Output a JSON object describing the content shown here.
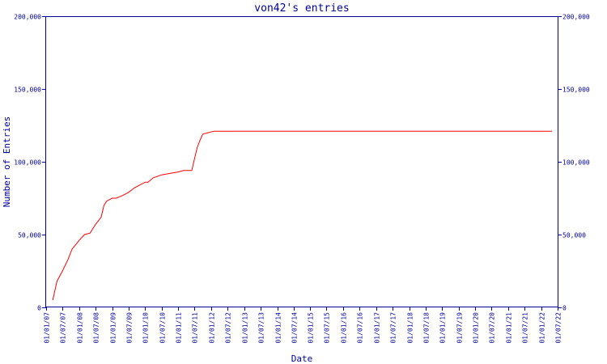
{
  "chart_data": {
    "type": "line",
    "title": "von42's entries",
    "xlabel": "Date",
    "ylabel": "Number of Entries",
    "ylim": [
      0,
      200000
    ],
    "y_ticks": [
      0,
      50000,
      100000,
      150000,
      200000
    ],
    "y_tick_labels": [
      "0",
      "50,000",
      "100,000",
      "150,000",
      "200,000"
    ],
    "x_range": [
      "2007-01-01",
      "2022-07-01"
    ],
    "x_tick_labels": [
      "01/01/07",
      "01/07/07",
      "01/01/08",
      "01/07/08",
      "01/01/09",
      "01/07/09",
      "01/01/10",
      "01/07/10",
      "01/01/11",
      "01/07/11",
      "01/01/12",
      "01/07/12",
      "01/01/13",
      "01/07/13",
      "01/01/14",
      "01/07/14",
      "01/01/15",
      "01/07/15",
      "01/01/16",
      "01/07/16",
      "01/01/17",
      "01/07/17",
      "01/01/18",
      "01/07/18",
      "01/01/19",
      "01/07/19",
      "01/01/20",
      "01/07/20",
      "01/01/21",
      "01/07/21",
      "01/01/22",
      "01/07/22"
    ],
    "line_color": "#ff0000",
    "axis_color": "#000099",
    "grid": false,
    "series": [
      {
        "x": [
          "2007-03-15",
          "2007-05-01",
          "2007-07-01",
          "2007-09-01",
          "2007-10-15",
          "2008-01-01",
          "2008-03-01",
          "2008-05-01",
          "2008-07-01",
          "2008-09-01",
          "2008-10-01",
          "2008-11-01",
          "2009-01-01",
          "2009-02-15",
          "2009-05-01",
          "2009-07-01",
          "2009-09-01",
          "2009-11-01",
          "2010-01-01",
          "2010-02-01",
          "2010-04-01",
          "2010-07-01",
          "2010-10-01",
          "2011-01-01",
          "2011-03-01",
          "2011-05-01",
          "2011-06-01",
          "2011-07-01",
          "2011-08-01",
          "2011-09-01",
          "2011-10-01",
          "2011-12-01",
          "2012-02-01",
          "2022-05-01"
        ],
        "y": [
          5000,
          18000,
          25000,
          33000,
          40000,
          46000,
          50000,
          51000,
          57000,
          62000,
          70000,
          73000,
          75000,
          75000,
          77000,
          79000,
          82000,
          84000,
          86000,
          86000,
          89000,
          91000,
          92000,
          93000,
          94000,
          94000,
          94000,
          102000,
          110000,
          115000,
          119000,
          120000,
          121000,
          121000
        ]
      }
    ]
  }
}
